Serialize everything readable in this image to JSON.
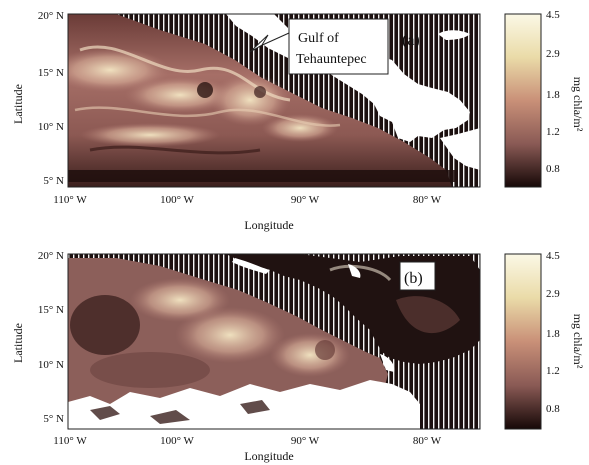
{
  "panels": [
    {
      "id": "a",
      "label": "(a)",
      "y_ticks": [
        "20° N",
        "15° N",
        "10° N",
        "5° N"
      ],
      "x_ticks": [
        "110° W",
        "100° W",
        "90° W",
        "80° W"
      ],
      "ylabel": "Latitude",
      "xlabel": "Longitude",
      "callout": {
        "line1": "Gulf of",
        "line2": "Tehauntepec"
      },
      "colorbar": {
        "ticks": [
          "4.5",
          "2.9",
          "1.8",
          "1.2",
          "0.8"
        ],
        "label": "mg chla/m²"
      }
    },
    {
      "id": "b",
      "label": "(b)",
      "y_ticks": [
        "20° N",
        "15° N",
        "10° N",
        "5° N"
      ],
      "x_ticks": [
        "110° W",
        "100° W",
        "90° W",
        "80° W"
      ],
      "ylabel": "Latitude",
      "xlabel": "Longitude",
      "colorbar": {
        "ticks": [
          "4.5",
          "2.9",
          "1.8",
          "1.2",
          "0.8"
        ],
        "label": "mg chla/m²"
      }
    }
  ],
  "colors": {
    "land": "#ffffff",
    "low_chl": "#2a1412",
    "mid_chl": "#b07a72",
    "high_chl": "#f2e8c6"
  }
}
